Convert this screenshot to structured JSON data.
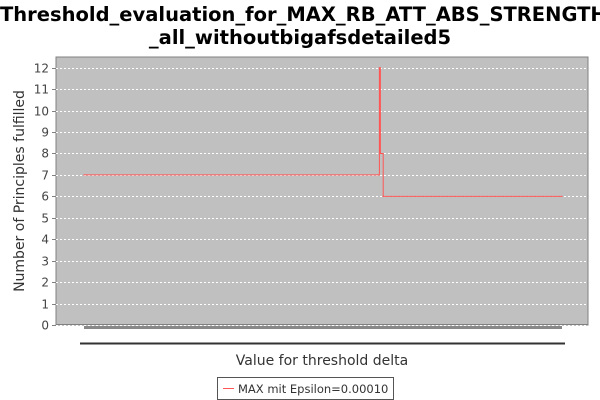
{
  "title_line1": "Threshold_evaluation_for_MAX_RB_ATT_ABS_STRENGTH",
  "title_line2": "_all_withoutbigafsdetailed5",
  "colors": {
    "plot_background": "#c0c0c0",
    "gridline": "#ffffff",
    "series": "#ff5555",
    "axis": "#808080"
  },
  "chart_data": {
    "type": "line",
    "title": "Threshold_evaluation_for_MAX_RB_ATT_ABS_STRENGTH_all_withoutbigafsdetailed5",
    "xlabel": "Value for threshold delta",
    "ylabel": "Number of Principles fulfilled",
    "ylim": [
      0,
      12.5
    ],
    "yticks": [
      0,
      1,
      2,
      3,
      4,
      5,
      6,
      7,
      8,
      9,
      10,
      11,
      12
    ],
    "xlim": [
      0,
      1
    ],
    "x_tick_labels": [],
    "grid": true,
    "legend_position": "bottom",
    "series": [
      {
        "name": "MAX mit Epsilon=0.00010",
        "color": "#ff5555",
        "x": [
          0.0,
          0.615,
          0.618,
          0.62,
          0.624,
          0.626,
          1.0
        ],
        "y": [
          7,
          7,
          12,
          8,
          8,
          6,
          6
        ]
      }
    ]
  }
}
